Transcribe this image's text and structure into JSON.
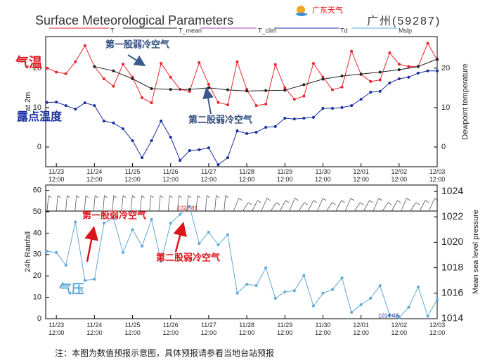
{
  "title": "Surface Meteorological Parameters",
  "station": "广州(59287)",
  "logo": "广东天气",
  "footnote": "注：本图为数值预报示意图，具体预报请参看当地台站预报",
  "chart_data": [
    {
      "type": "line",
      "ylabel": "at 2m",
      "y2label": "Dewpoint temperature",
      "xlim": [
        -0.28,
        10
      ],
      "xticks": [
        {
          "value": 0,
          "label": "11/23 12:00"
        },
        {
          "value": 1,
          "label": "11/24 12:00"
        },
        {
          "value": 2,
          "label": "11/25 12:00"
        },
        {
          "value": 3,
          "label": "11/26 12:00"
        },
        {
          "value": 4,
          "label": "11/27 12:00"
        },
        {
          "value": 5,
          "label": "11/28 12:00"
        },
        {
          "value": 6,
          "label": "11/29 12:00"
        },
        {
          "value": 7,
          "label": "11/30 12:00"
        },
        {
          "value": 8,
          "label": "12/01 12:00"
        },
        {
          "value": 9,
          "label": "12/02 12:00"
        },
        {
          "value": 10,
          "label": "12/03 12:00"
        }
      ],
      "ylim": [
        -5,
        28
      ],
      "yticks": [
        0,
        10,
        20
      ],
      "y2lim": [
        -5,
        28
      ],
      "y2ticks": [
        0,
        10,
        20
      ],
      "annotations": [
        "气温",
        "露点温度",
        "第一股弱冷空气",
        "第二股弱冷空气"
      ],
      "series": [
        {
          "name": "T",
          "color": "#e8262b",
          "markers": true,
          "x": [
            -0.25,
            0,
            0.25,
            0.5,
            0.75,
            1,
            1.25,
            1.5,
            1.75,
            2,
            2.25,
            2.5,
            2.75,
            3,
            3.25,
            3.5,
            3.75,
            4,
            4.25,
            4.5,
            4.75,
            5,
            5.25,
            5.5,
            5.75,
            6,
            6.25,
            6.5,
            6.75,
            7,
            7.25,
            7.5,
            7.75,
            8,
            8.25,
            8.5,
            8.75,
            9,
            9.25,
            9.5,
            9.75,
            10
          ],
          "values": [
            20,
            19,
            18.6,
            21.6,
            25.7,
            20.4,
            17.3,
            15.4,
            21,
            17.7,
            12.5,
            11.2,
            21.2,
            17.7,
            14.6,
            14.1,
            21.4,
            15.9,
            11.3,
            10.7,
            21.6,
            14.6,
            10.5,
            10.9,
            20.9,
            15,
            12.1,
            12.9,
            21.2,
            17.7,
            14.5,
            15.2,
            24.3,
            18.4,
            16.6,
            17,
            23.9,
            21,
            20.4,
            20.4,
            26.3,
            22.1
          ]
        },
        {
          "name": "T_mean",
          "color": "#222222",
          "markers": true,
          "x": [
            1,
            1.5,
            2,
            2.5,
            3,
            3.5,
            4,
            4.5,
            5,
            5.5,
            6,
            6.5,
            7,
            7.5,
            8,
            8.5,
            9,
            9.5,
            10
          ],
          "values": [
            20.4,
            19.3,
            17.3,
            14.8,
            14.6,
            14.6,
            15,
            14.5,
            14.2,
            14.3,
            14.4,
            15.8,
            17.2,
            18,
            18.5,
            19,
            19.6,
            20.4,
            22.3
          ]
        },
        {
          "name": "T_clim",
          "color": "#a040c0"
        },
        {
          "name": "Td",
          "color": "#1a2fa0",
          "markers": true,
          "axis": "y2",
          "x": [
            -0.25,
            0,
            0.25,
            0.5,
            0.75,
            1,
            1.25,
            1.5,
            1.75,
            2,
            2.25,
            2.5,
            2.75,
            3,
            3.25,
            3.5,
            3.75,
            4,
            4.25,
            4.5,
            4.75,
            5,
            5.25,
            5.5,
            5.75,
            6,
            6.25,
            6.5,
            6.75,
            7,
            7.25,
            7.5,
            7.75,
            8,
            8.25,
            8.5,
            8.75,
            9,
            9.25,
            9.5,
            9.75,
            10
          ],
          "values": [
            11.3,
            11.4,
            10.5,
            9.6,
            11.2,
            10.5,
            6.6,
            6.1,
            4.6,
            1.6,
            -2.7,
            1.6,
            6.6,
            2.5,
            -3.4,
            -0.9,
            -0.7,
            -0.2,
            -4.5,
            -2.7,
            4.1,
            3.4,
            3.75,
            5,
            5.2,
            7.3,
            7.1,
            7.3,
            7.5,
            9.8,
            9.8,
            10,
            10.5,
            12.1,
            13.9,
            14.1,
            16.25,
            17.3,
            17.7,
            18.75,
            19.3,
            19.3
          ]
        }
      ]
    },
    {
      "type": "line",
      "ylabel": "24h Rainfall",
      "y2label": "Mean sea level pressure",
      "xlim": [
        -0.28,
        10
      ],
      "xticks": [
        {
          "value": 0,
          "label": "11/23 12:00"
        },
        {
          "value": 1,
          "label": "11/24 12:00"
        },
        {
          "value": 2,
          "label": "11/25 12:00"
        },
        {
          "value": 3,
          "label": "11/26 12:00"
        },
        {
          "value": 4,
          "label": "11/27 12:00"
        },
        {
          "value": 5,
          "label": "11/28 12:00"
        },
        {
          "value": 6,
          "label": "11/29 12:00"
        },
        {
          "value": 7,
          "label": "11/30 12:00"
        },
        {
          "value": 8,
          "label": "12/01 12:00"
        },
        {
          "value": 9,
          "label": "12/02 12:00"
        },
        {
          "value": 10,
          "label": "12/03 12:00"
        }
      ],
      "ylim": [
        0,
        62.5
      ],
      "yticks": [
        0,
        10,
        20,
        30,
        40,
        50,
        60
      ],
      "y2lim": [
        1014,
        1024.5
      ],
      "y2ticks": [
        1014,
        1016,
        1018,
        1020,
        1022,
        1024
      ],
      "annotations": [
        "第一股弱冷空气",
        "第二股弱冷空气",
        "气压"
      ],
      "max_label": {
        "value": 1022.81,
        "label": "1022.81"
      },
      "min_label": {
        "value": 1014.08,
        "label": "1014.08"
      },
      "series": [
        {
          "name": "Mslp",
          "color": "#5fa8d8",
          "markers": true,
          "axis": "y2",
          "x": [
            -0.25,
            0,
            0.25,
            0.5,
            0.75,
            1,
            1.25,
            1.5,
            1.75,
            2,
            2.25,
            2.5,
            2.75,
            3,
            3.25,
            3.5,
            3.75,
            4,
            4.25,
            4.5,
            4.75,
            5,
            5.25,
            5.5,
            5.75,
            6,
            6.25,
            6.5,
            6.75,
            7,
            7.25,
            7.5,
            7.75,
            8,
            8.25,
            8.5,
            8.75,
            9,
            9.25,
            9.5,
            9.75,
            10
          ],
          "values": [
            1019.3,
            1019.2,
            1018.2,
            1021.6,
            1017,
            1017.1,
            1021.5,
            1021.9,
            1019.2,
            1021,
            1019.7,
            1021.8,
            1018.5,
            1021.5,
            1022.2,
            1022.81,
            1019.9,
            1020.8,
            1019.8,
            1020.6,
            1016,
            1016.7,
            1016.6,
            1018,
            1015.6,
            1016.1,
            1016.2,
            1017.4,
            1015,
            1016,
            1016.3,
            1017.2,
            1014.5,
            1015.1,
            1015.6,
            1016.6,
            1014.3,
            1014.08,
            1014.9,
            1016.5,
            1014.2,
            1015.5
          ]
        }
      ]
    }
  ]
}
